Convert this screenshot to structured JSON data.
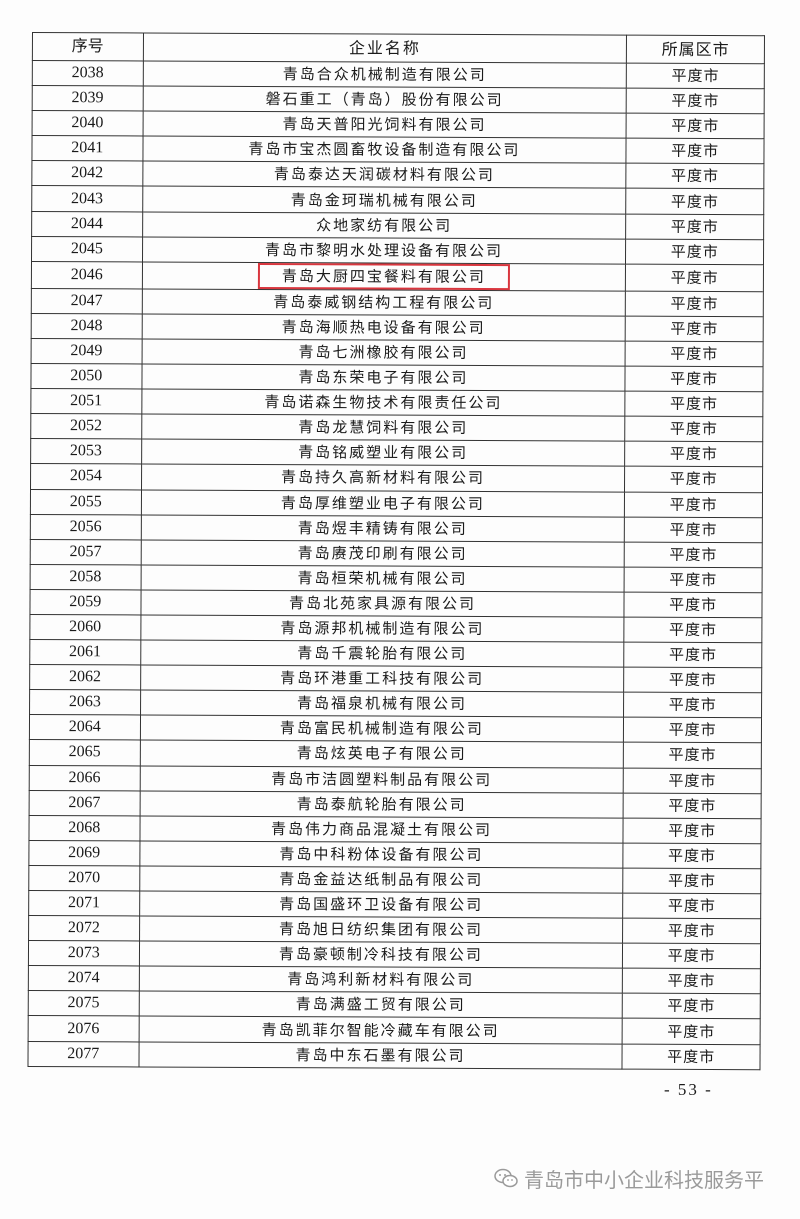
{
  "table": {
    "headers": [
      "序号",
      "企业名称",
      "所属区市"
    ],
    "highlight_color": "#d9363e",
    "highlighted_index": "2046",
    "rows": [
      [
        "2038",
        "青岛合众机械制造有限公司",
        "平度市"
      ],
      [
        "2039",
        "磐石重工（青岛）股份有限公司",
        "平度市"
      ],
      [
        "2040",
        "青岛天普阳光饲料有限公司",
        "平度市"
      ],
      [
        "2041",
        "青岛市宝杰圆畜牧设备制造有限公司",
        "平度市"
      ],
      [
        "2042",
        "青岛泰达天润碳材料有限公司",
        "平度市"
      ],
      [
        "2043",
        "青岛金珂瑞机械有限公司",
        "平度市"
      ],
      [
        "2044",
        "众地家纺有限公司",
        "平度市"
      ],
      [
        "2045",
        "青岛市黎明水处理设备有限公司",
        "平度市"
      ],
      [
        "2046",
        "青岛大厨四宝餐料有限公司",
        "平度市"
      ],
      [
        "2047",
        "青岛泰威钢结构工程有限公司",
        "平度市"
      ],
      [
        "2048",
        "青岛海顺热电设备有限公司",
        "平度市"
      ],
      [
        "2049",
        "青岛七洲橡胶有限公司",
        "平度市"
      ],
      [
        "2050",
        "青岛东荣电子有限公司",
        "平度市"
      ],
      [
        "2051",
        "青岛诺森生物技术有限责任公司",
        "平度市"
      ],
      [
        "2052",
        "青岛龙慧饲料有限公司",
        "平度市"
      ],
      [
        "2053",
        "青岛铭威塑业有限公司",
        "平度市"
      ],
      [
        "2054",
        "青岛持久高新材料有限公司",
        "平度市"
      ],
      [
        "2055",
        "青岛厚维塑业电子有限公司",
        "平度市"
      ],
      [
        "2056",
        "青岛煜丰精铸有限公司",
        "平度市"
      ],
      [
        "2057",
        "青岛赓茂印刷有限公司",
        "平度市"
      ],
      [
        "2058",
        "青岛桓荣机械有限公司",
        "平度市"
      ],
      [
        "2059",
        "青岛北苑家具源有限公司",
        "平度市"
      ],
      [
        "2060",
        "青岛源邦机械制造有限公司",
        "平度市"
      ],
      [
        "2061",
        "青岛千震轮胎有限公司",
        "平度市"
      ],
      [
        "2062",
        "青岛环港重工科技有限公司",
        "平度市"
      ],
      [
        "2063",
        "青岛福泉机械有限公司",
        "平度市"
      ],
      [
        "2064",
        "青岛富民机械制造有限公司",
        "平度市"
      ],
      [
        "2065",
        "青岛炫英电子有限公司",
        "平度市"
      ],
      [
        "2066",
        "青岛市洁圆塑料制品有限公司",
        "平度市"
      ],
      [
        "2067",
        "青岛泰航轮胎有限公司",
        "平度市"
      ],
      [
        "2068",
        "青岛伟力商品混凝土有限公司",
        "平度市"
      ],
      [
        "2069",
        "青岛中科粉体设备有限公司",
        "平度市"
      ],
      [
        "2070",
        "青岛金益达纸制品有限公司",
        "平度市"
      ],
      [
        "2071",
        "青岛国盛环卫设备有限公司",
        "平度市"
      ],
      [
        "2072",
        "青岛旭日纺织集团有限公司",
        "平度市"
      ],
      [
        "2073",
        "青岛豪顿制冷科技有限公司",
        "平度市"
      ],
      [
        "2074",
        "青岛鸿利新材料有限公司",
        "平度市"
      ],
      [
        "2075",
        "青岛满盛工贸有限公司",
        "平度市"
      ],
      [
        "2076",
        "青岛凯菲尔智能冷藏车有限公司",
        "平度市"
      ],
      [
        "2077",
        "青岛中东石墨有限公司",
        "平度市"
      ]
    ]
  },
  "page_number": "- 53 -",
  "watermark": {
    "icon": "wechat-icon",
    "text": "青岛市中小企业科技服务平"
  }
}
